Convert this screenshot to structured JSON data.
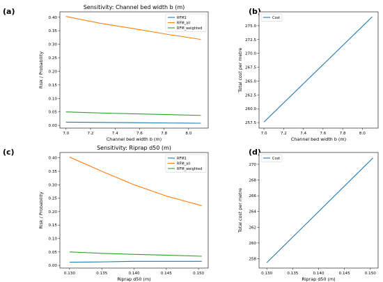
{
  "chart_data": [
    {
      "panel": "(a)",
      "type": "line",
      "title": "Sensitivity: Channel bed width b (m)",
      "xlabel": "Channel bed width b (m)",
      "ylabel": "Risk / Probability",
      "xlim": [
        6.95,
        8.16
      ],
      "ylim": [
        -0.01,
        0.42
      ],
      "xticks": [
        7.0,
        7.2,
        7.4,
        7.6,
        7.8,
        8.0
      ],
      "xtick_labels": [
        "7.0",
        "7.2",
        "7.4",
        "7.6",
        "7.8",
        "8.0"
      ],
      "yticks": [
        0.0,
        0.05,
        0.1,
        0.15,
        0.2,
        0.25,
        0.3,
        0.35,
        0.4
      ],
      "ytick_labels": [
        "0.00",
        "0.05",
        "0.10",
        "0.15",
        "0.20",
        "0.25",
        "0.30",
        "0.35",
        "0.40"
      ],
      "legend_position": "top-right",
      "series": [
        {
          "name": "RFM1",
          "color": "#1f77b4",
          "x": [
            7.0,
            7.275,
            7.55,
            7.825,
            8.1
          ],
          "y": [
            0.012,
            0.011,
            0.01,
            0.009,
            0.008
          ]
        },
        {
          "name": "RFM_all",
          "color": "#ff7f0e",
          "x": [
            7.0,
            7.275,
            7.55,
            7.825,
            8.1
          ],
          "y": [
            0.403,
            0.378,
            0.358,
            0.337,
            0.318
          ]
        },
        {
          "name": "RFM_weighted",
          "color": "#2ca02c",
          "x": [
            7.0,
            7.275,
            7.55,
            7.825,
            8.1
          ],
          "y": [
            0.05,
            0.046,
            0.043,
            0.04,
            0.037
          ]
        }
      ]
    },
    {
      "panel": "(b)",
      "type": "line",
      "title": "",
      "xlabel": "Channel bed width b (m)",
      "ylabel": "Total cost per metre",
      "xlim": [
        6.95,
        8.16
      ],
      "ylim": [
        256.5,
        277.5
      ],
      "xticks": [
        7.0,
        7.2,
        7.4,
        7.6,
        7.8,
        8.0
      ],
      "xtick_labels": [
        "7.0",
        "7.2",
        "7.4",
        "7.6",
        "7.8",
        "8.0"
      ],
      "yticks": [
        257.5,
        260.0,
        262.5,
        265.0,
        267.5,
        270.0,
        272.5,
        275.0
      ],
      "ytick_labels": [
        "257.5",
        "260.0",
        "262.5",
        "265.0",
        "267.5",
        "270.0",
        "272.5",
        "275.0"
      ],
      "legend_position": "top-left",
      "series": [
        {
          "name": "Cost",
          "color": "#1f77b4",
          "x": [
            7.0,
            8.1
          ],
          "y": [
            257.6,
            276.6
          ]
        }
      ]
    },
    {
      "panel": "(c)",
      "type": "line",
      "title": "Sensitivity: Riprap d50 (m)",
      "xlabel": "Riprap d50 (m)",
      "ylabel": "Risk / Probability",
      "xlim": [
        0.1285,
        0.1515
      ],
      "ylim": [
        -0.01,
        0.42
      ],
      "xticks": [
        0.13,
        0.135,
        0.14,
        0.145,
        0.15
      ],
      "xtick_labels": [
        "0.130",
        "0.135",
        "0.140",
        "0.145",
        "0.150"
      ],
      "yticks": [
        0.0,
        0.05,
        0.1,
        0.15,
        0.2,
        0.25,
        0.3,
        0.35,
        0.4
      ],
      "ytick_labels": [
        "0.00",
        "0.05",
        "0.10",
        "0.15",
        "0.20",
        "0.25",
        "0.30",
        "0.35",
        "0.40"
      ],
      "legend_position": "top-right",
      "series": [
        {
          "name": "RFM1",
          "color": "#1f77b4",
          "x": [
            0.13,
            0.135,
            0.14,
            0.145,
            0.1505
          ],
          "y": [
            0.012,
            0.013,
            0.015,
            0.015,
            0.015
          ]
        },
        {
          "name": "RFM_all",
          "color": "#ff7f0e",
          "x": [
            0.13,
            0.135,
            0.14,
            0.145,
            0.1505
          ],
          "y": [
            0.403,
            0.35,
            0.3,
            0.258,
            0.222
          ]
        },
        {
          "name": "RFM_weighted",
          "color": "#2ca02c",
          "x": [
            0.13,
            0.135,
            0.14,
            0.145,
            0.1505
          ],
          "y": [
            0.05,
            0.045,
            0.041,
            0.038,
            0.034
          ]
        }
      ]
    },
    {
      "panel": "(d)",
      "type": "line",
      "title": "",
      "xlabel": "Riprap d50 (m)",
      "ylabel": "Total cost per metre",
      "xlim": [
        0.1285,
        0.1515
      ],
      "ylim": [
        256.8,
        271.5
      ],
      "xticks": [
        0.13,
        0.135,
        0.14,
        0.145,
        0.15
      ],
      "xtick_labels": [
        "0.130",
        "0.135",
        "0.140",
        "0.145",
        "0.150"
      ],
      "yticks": [
        258,
        260,
        262,
        264,
        266,
        268,
        270
      ],
      "ytick_labels": [
        "258",
        "260",
        "262",
        "264",
        "266",
        "268",
        "270"
      ],
      "legend_position": "top-left",
      "series": [
        {
          "name": "Cost",
          "color": "#1f77b4",
          "x": [
            0.13,
            0.1505
          ],
          "y": [
            257.5,
            270.8
          ]
        }
      ]
    }
  ]
}
